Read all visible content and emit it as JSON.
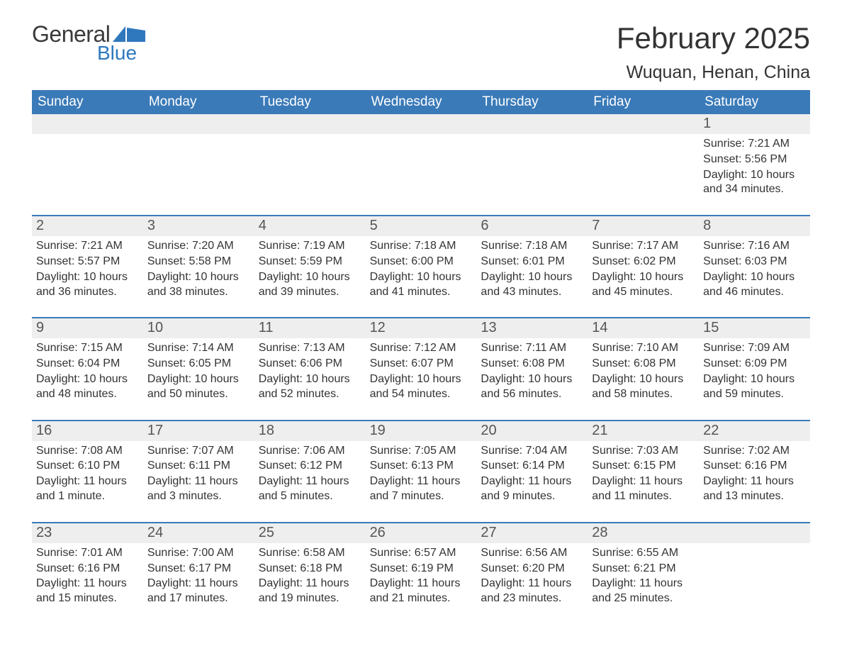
{
  "logo": {
    "top": "General",
    "bottom": "Blue",
    "flag_color": "#2f78bd"
  },
  "title": "February 2025",
  "location": "Wuquan, Henan, China",
  "colors": {
    "header_bg": "#3a7ab8",
    "header_text": "#ffffff",
    "daynum_bg": "#eeeeee",
    "week_border": "#3a7ab8",
    "text": "#333333",
    "logo_top": "#3a3a3a",
    "logo_bottom": "#2f78bd"
  },
  "days_of_week": [
    "Sunday",
    "Monday",
    "Tuesday",
    "Wednesday",
    "Thursday",
    "Friday",
    "Saturday"
  ],
  "weeks": [
    [
      {
        "n": "",
        "sr": "",
        "ss": "",
        "dl": ""
      },
      {
        "n": "",
        "sr": "",
        "ss": "",
        "dl": ""
      },
      {
        "n": "",
        "sr": "",
        "ss": "",
        "dl": ""
      },
      {
        "n": "",
        "sr": "",
        "ss": "",
        "dl": ""
      },
      {
        "n": "",
        "sr": "",
        "ss": "",
        "dl": ""
      },
      {
        "n": "",
        "sr": "",
        "ss": "",
        "dl": ""
      },
      {
        "n": "1",
        "sr": "Sunrise: 7:21 AM",
        "ss": "Sunset: 5:56 PM",
        "dl": "Daylight: 10 hours and 34 minutes."
      }
    ],
    [
      {
        "n": "2",
        "sr": "Sunrise: 7:21 AM",
        "ss": "Sunset: 5:57 PM",
        "dl": "Daylight: 10 hours and 36 minutes."
      },
      {
        "n": "3",
        "sr": "Sunrise: 7:20 AM",
        "ss": "Sunset: 5:58 PM",
        "dl": "Daylight: 10 hours and 38 minutes."
      },
      {
        "n": "4",
        "sr": "Sunrise: 7:19 AM",
        "ss": "Sunset: 5:59 PM",
        "dl": "Daylight: 10 hours and 39 minutes."
      },
      {
        "n": "5",
        "sr": "Sunrise: 7:18 AM",
        "ss": "Sunset: 6:00 PM",
        "dl": "Daylight: 10 hours and 41 minutes."
      },
      {
        "n": "6",
        "sr": "Sunrise: 7:18 AM",
        "ss": "Sunset: 6:01 PM",
        "dl": "Daylight: 10 hours and 43 minutes."
      },
      {
        "n": "7",
        "sr": "Sunrise: 7:17 AM",
        "ss": "Sunset: 6:02 PM",
        "dl": "Daylight: 10 hours and 45 minutes."
      },
      {
        "n": "8",
        "sr": "Sunrise: 7:16 AM",
        "ss": "Sunset: 6:03 PM",
        "dl": "Daylight: 10 hours and 46 minutes."
      }
    ],
    [
      {
        "n": "9",
        "sr": "Sunrise: 7:15 AM",
        "ss": "Sunset: 6:04 PM",
        "dl": "Daylight: 10 hours and 48 minutes."
      },
      {
        "n": "10",
        "sr": "Sunrise: 7:14 AM",
        "ss": "Sunset: 6:05 PM",
        "dl": "Daylight: 10 hours and 50 minutes."
      },
      {
        "n": "11",
        "sr": "Sunrise: 7:13 AM",
        "ss": "Sunset: 6:06 PM",
        "dl": "Daylight: 10 hours and 52 minutes."
      },
      {
        "n": "12",
        "sr": "Sunrise: 7:12 AM",
        "ss": "Sunset: 6:07 PM",
        "dl": "Daylight: 10 hours and 54 minutes."
      },
      {
        "n": "13",
        "sr": "Sunrise: 7:11 AM",
        "ss": "Sunset: 6:08 PM",
        "dl": "Daylight: 10 hours and 56 minutes."
      },
      {
        "n": "14",
        "sr": "Sunrise: 7:10 AM",
        "ss": "Sunset: 6:08 PM",
        "dl": "Daylight: 10 hours and 58 minutes."
      },
      {
        "n": "15",
        "sr": "Sunrise: 7:09 AM",
        "ss": "Sunset: 6:09 PM",
        "dl": "Daylight: 10 hours and 59 minutes."
      }
    ],
    [
      {
        "n": "16",
        "sr": "Sunrise: 7:08 AM",
        "ss": "Sunset: 6:10 PM",
        "dl": "Daylight: 11 hours and 1 minute."
      },
      {
        "n": "17",
        "sr": "Sunrise: 7:07 AM",
        "ss": "Sunset: 6:11 PM",
        "dl": "Daylight: 11 hours and 3 minutes."
      },
      {
        "n": "18",
        "sr": "Sunrise: 7:06 AM",
        "ss": "Sunset: 6:12 PM",
        "dl": "Daylight: 11 hours and 5 minutes."
      },
      {
        "n": "19",
        "sr": "Sunrise: 7:05 AM",
        "ss": "Sunset: 6:13 PM",
        "dl": "Daylight: 11 hours and 7 minutes."
      },
      {
        "n": "20",
        "sr": "Sunrise: 7:04 AM",
        "ss": "Sunset: 6:14 PM",
        "dl": "Daylight: 11 hours and 9 minutes."
      },
      {
        "n": "21",
        "sr": "Sunrise: 7:03 AM",
        "ss": "Sunset: 6:15 PM",
        "dl": "Daylight: 11 hours and 11 minutes."
      },
      {
        "n": "22",
        "sr": "Sunrise: 7:02 AM",
        "ss": "Sunset: 6:16 PM",
        "dl": "Daylight: 11 hours and 13 minutes."
      }
    ],
    [
      {
        "n": "23",
        "sr": "Sunrise: 7:01 AM",
        "ss": "Sunset: 6:16 PM",
        "dl": "Daylight: 11 hours and 15 minutes."
      },
      {
        "n": "24",
        "sr": "Sunrise: 7:00 AM",
        "ss": "Sunset: 6:17 PM",
        "dl": "Daylight: 11 hours and 17 minutes."
      },
      {
        "n": "25",
        "sr": "Sunrise: 6:58 AM",
        "ss": "Sunset: 6:18 PM",
        "dl": "Daylight: 11 hours and 19 minutes."
      },
      {
        "n": "26",
        "sr": "Sunrise: 6:57 AM",
        "ss": "Sunset: 6:19 PM",
        "dl": "Daylight: 11 hours and 21 minutes."
      },
      {
        "n": "27",
        "sr": "Sunrise: 6:56 AM",
        "ss": "Sunset: 6:20 PM",
        "dl": "Daylight: 11 hours and 23 minutes."
      },
      {
        "n": "28",
        "sr": "Sunrise: 6:55 AM",
        "ss": "Sunset: 6:21 PM",
        "dl": "Daylight: 11 hours and 25 minutes."
      },
      {
        "n": "",
        "sr": "",
        "ss": "",
        "dl": ""
      }
    ]
  ]
}
